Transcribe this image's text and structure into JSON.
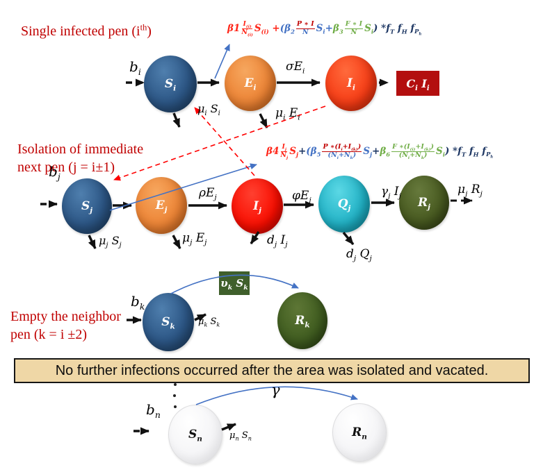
{
  "headings": {
    "row1": "Single infected pen (i^{th})",
    "row2": [
      "Isolation of immediate",
      "next pen (j = i±1)"
    ],
    "row3": [
      "Empty the neighbor",
      "pen (k = i ±2)"
    ]
  },
  "banner": {
    "text": "No further infections occurred after the area was isolated and vacated."
  },
  "nodes": {
    "si": "S_i",
    "ei": "E_i",
    "ii": "I_i",
    "ci_box": "C_i I_i",
    "sj": "S_j",
    "ej": "E_j",
    "ij": "I_j",
    "qj": "Q_j",
    "rj": "R_j",
    "sk": "S_k",
    "rk": "R_k",
    "vk_box": "υ_k S_k",
    "sn": "S_n",
    "rn": "R_n"
  },
  "edge_labels": {
    "b_i": "b_i",
    "sigma_ei": "σE_i",
    "mui_si": "μ_i S_i",
    "mui_ei": "μ_i E_i",
    "b_j": "b_j",
    "rho_ej": "ρE_j",
    "phi_ej": "φE_j",
    "gammaj_ij": "γ_j I_j",
    "muj_rj": "μ_j R_j",
    "muj_sj": "μ_j S_j",
    "muj_ej": "μ_j E_j",
    "dj_ij": "d_j I_j",
    "dj_qj": "d_j Q_j",
    "b_k": "b_k",
    "muk_sk": "μ_k S_k",
    "b_n": "b_n",
    "mun_sn": "μ_n S_n",
    "gamma": "γ"
  },
  "colors": {
    "heading_red": "#C00000",
    "formula_red": "#FF2619",
    "formula_blue": "#4472C4",
    "formula_green": "#70AD47",
    "formula_navy": "#1F3864",
    "box_dark_red": "#B30F0F",
    "box_dark_green": "#3F5F2B",
    "banner_bg": "#EFD7A6",
    "arrow_red": "#FF0000",
    "arrow_blue": "#4472C4"
  },
  "formulas": {
    "f1": {
      "segments": [
        {
          "t": "β1 ",
          "c": "#FF2619"
        },
        {
          "n": "I_{(i)}",
          "d": "N_{(i)}",
          "c": "#FF2619"
        },
        {
          "t": " S_{(i)} + ",
          "c": "#FF2619"
        },
        {
          "t": "( ",
          "c": "#4472C4"
        },
        {
          "t": "β_2",
          "c": "#4472C4"
        },
        {
          "n": "P ∗ I",
          "d": "N",
          "c": "#4472C4",
          "nc": "#C00000"
        },
        {
          "t": " S_i ",
          "c": "#4472C4"
        },
        {
          "t": "+ ",
          "c": "#4472C4"
        },
        {
          "t": "β_3 ",
          "c": "#70AD47"
        },
        {
          "n": "F ∗ I",
          "d": "N",
          "c": "#70AD47"
        },
        {
          "t": "S_i",
          "c": "#70AD47"
        },
        {
          "t": ") * ",
          "c": "#1F3864"
        },
        {
          "t": "f_T f_H f_{P_h}",
          "c": "#1F3864"
        }
      ]
    },
    "f2": {
      "segments": [
        {
          "t": "β4 ",
          "c": "#FF2619"
        },
        {
          "n": "I_j",
          "d": "N_j",
          "c": "#FF2619"
        },
        {
          "t": " S_j ",
          "c": "#FF2619"
        },
        {
          "t": "+ ",
          "c": "#1F3864"
        },
        {
          "t": "(",
          "c": "#4472C4"
        },
        {
          "t": "β_5 ",
          "c": "#4472C4"
        },
        {
          "n": "P ∗(I_i+I_{(k)})",
          "d": "(N_i+N_k)",
          "c": "#4472C4",
          "nc": "#C00000"
        },
        {
          "t": " S_j ",
          "c": "#4472C4"
        },
        {
          "t": "+ ",
          "c": "#1F3864"
        },
        {
          "t": "β_6 ",
          "c": "#70AD47"
        },
        {
          "n": "F ∗(I_{(i)}+I_{(k)})",
          "d": "(N_i+N_k)",
          "c": "#70AD47"
        },
        {
          "t": "S_i",
          "c": "#70AD47"
        },
        {
          "t": ") * ",
          "c": "#1F3864"
        },
        {
          "t": "f_T f_H f_{P_h}",
          "c": "#1F3864"
        }
      ]
    }
  }
}
